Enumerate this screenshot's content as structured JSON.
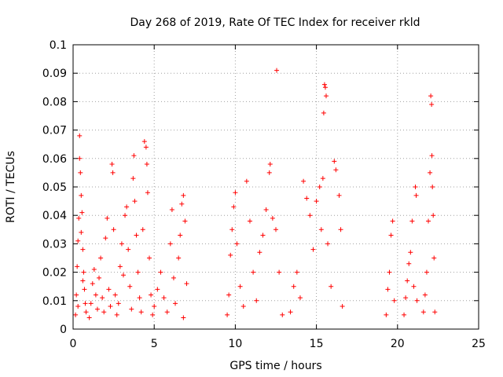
{
  "chart_data": {
    "type": "scatter",
    "title": "Day 268 of 2019, Rate Of TEC Index for receiver rkld",
    "xlabel": "GPS time / hours",
    "ylabel": "ROTI / TECUs",
    "xlim": [
      0,
      25
    ],
    "ylim": [
      0,
      0.1
    ],
    "x_ticks": [
      "0",
      "5",
      "10",
      "15",
      "20",
      "25"
    ],
    "y_ticks": [
      "0",
      "0.01",
      "0.02",
      "0.03",
      "0.04",
      "0.05",
      "0.06",
      "0.07",
      "0.08",
      "0.09",
      "0.1"
    ],
    "grid": true,
    "marker": "+",
    "color": "#ff0000",
    "series": [
      {
        "points": [
          [
            0.15,
            0.005
          ],
          [
            0.2,
            0.012
          ],
          [
            0.25,
            0.022
          ],
          [
            0.3,
            0.031
          ],
          [
            0.35,
            0.039
          ],
          [
            0.4,
            0.068
          ],
          [
            0.4,
            0.06
          ],
          [
            0.45,
            0.055
          ],
          [
            0.5,
            0.047
          ],
          [
            0.55,
            0.041
          ],
          [
            0.6,
            0.028
          ],
          [
            0.65,
            0.02
          ],
          [
            0.7,
            0.014
          ],
          [
            0.75,
            0.009
          ],
          [
            0.8,
            0.006
          ],
          [
            0.3,
            0.008
          ],
          [
            0.5,
            0.034
          ],
          [
            0.6,
            0.017
          ],
          [
            1.0,
            0.004
          ],
          [
            1.1,
            0.009
          ],
          [
            1.2,
            0.016
          ],
          [
            1.3,
            0.021
          ],
          [
            1.4,
            0.012
          ],
          [
            1.5,
            0.007
          ],
          [
            1.6,
            0.018
          ],
          [
            1.7,
            0.025
          ],
          [
            1.8,
            0.011
          ],
          [
            1.9,
            0.006
          ],
          [
            2.0,
            0.032
          ],
          [
            2.1,
            0.039
          ],
          [
            2.2,
            0.014
          ],
          [
            2.3,
            0.008
          ],
          [
            2.4,
            0.058
          ],
          [
            2.45,
            0.055
          ],
          [
            2.5,
            0.035
          ],
          [
            2.6,
            0.012
          ],
          [
            2.7,
            0.005
          ],
          [
            2.8,
            0.009
          ],
          [
            2.9,
            0.022
          ],
          [
            3.0,
            0.03
          ],
          [
            3.1,
            0.019
          ],
          [
            3.2,
            0.04
          ],
          [
            3.3,
            0.043
          ],
          [
            3.4,
            0.028
          ],
          [
            3.5,
            0.015
          ],
          [
            3.6,
            0.007
          ],
          [
            3.7,
            0.053
          ],
          [
            3.75,
            0.061
          ],
          [
            3.8,
            0.045
          ],
          [
            3.9,
            0.033
          ],
          [
            4.0,
            0.02
          ],
          [
            4.1,
            0.011
          ],
          [
            4.2,
            0.006
          ],
          [
            4.3,
            0.035
          ],
          [
            4.4,
            0.066
          ],
          [
            4.5,
            0.064
          ],
          [
            4.55,
            0.058
          ],
          [
            4.6,
            0.048
          ],
          [
            4.7,
            0.025
          ],
          [
            4.8,
            0.012
          ],
          [
            4.9,
            0.005
          ],
          [
            5.0,
            0.008
          ],
          [
            5.2,
            0.014
          ],
          [
            5.4,
            0.02
          ],
          [
            5.6,
            0.011
          ],
          [
            5.8,
            0.006
          ],
          [
            6.0,
            0.03
          ],
          [
            6.1,
            0.042
          ],
          [
            6.2,
            0.018
          ],
          [
            6.3,
            0.009
          ],
          [
            6.5,
            0.025
          ],
          [
            6.6,
            0.033
          ],
          [
            6.7,
            0.044
          ],
          [
            6.8,
            0.047
          ],
          [
            6.9,
            0.038
          ],
          [
            7.0,
            0.016
          ],
          [
            6.8,
            0.004
          ],
          [
            9.5,
            0.005
          ],
          [
            9.6,
            0.012
          ],
          [
            9.7,
            0.026
          ],
          [
            9.8,
            0.035
          ],
          [
            9.9,
            0.043
          ],
          [
            10.0,
            0.048
          ],
          [
            10.1,
            0.03
          ],
          [
            10.3,
            0.015
          ],
          [
            10.5,
            0.008
          ],
          [
            10.7,
            0.052
          ],
          [
            10.9,
            0.038
          ],
          [
            11.1,
            0.02
          ],
          [
            11.3,
            0.01
          ],
          [
            11.5,
            0.027
          ],
          [
            11.7,
            0.033
          ],
          [
            11.9,
            0.042
          ],
          [
            12.1,
            0.055
          ],
          [
            12.15,
            0.058
          ],
          [
            12.3,
            0.039
          ],
          [
            12.5,
            0.035
          ],
          [
            12.55,
            0.091
          ],
          [
            12.7,
            0.02
          ],
          [
            12.9,
            0.005
          ],
          [
            13.4,
            0.006
          ],
          [
            13.6,
            0.015
          ],
          [
            13.8,
            0.02
          ],
          [
            14.0,
            0.011
          ],
          [
            14.2,
            0.052
          ],
          [
            14.4,
            0.046
          ],
          [
            14.6,
            0.04
          ],
          [
            14.8,
            0.028
          ],
          [
            15.0,
            0.045
          ],
          [
            15.2,
            0.05
          ],
          [
            15.3,
            0.035
          ],
          [
            15.4,
            0.053
          ],
          [
            15.45,
            0.076
          ],
          [
            15.5,
            0.086
          ],
          [
            15.55,
            0.085
          ],
          [
            15.6,
            0.082
          ],
          [
            15.7,
            0.03
          ],
          [
            15.9,
            0.015
          ],
          [
            16.1,
            0.059
          ],
          [
            16.2,
            0.056
          ],
          [
            16.4,
            0.047
          ],
          [
            16.5,
            0.035
          ],
          [
            16.6,
            0.008
          ],
          [
            19.3,
            0.005
          ],
          [
            19.4,
            0.014
          ],
          [
            19.5,
            0.02
          ],
          [
            19.6,
            0.033
          ],
          [
            19.7,
            0.038
          ],
          [
            19.8,
            0.01
          ],
          [
            20.4,
            0.005
          ],
          [
            20.5,
            0.011
          ],
          [
            20.6,
            0.017
          ],
          [
            20.7,
            0.023
          ],
          [
            20.8,
            0.027
          ],
          [
            20.9,
            0.038
          ],
          [
            21.0,
            0.015
          ],
          [
            21.1,
            0.05
          ],
          [
            21.15,
            0.047
          ],
          [
            21.2,
            0.01
          ],
          [
            21.6,
            0.006
          ],
          [
            21.7,
            0.012
          ],
          [
            21.8,
            0.02
          ],
          [
            21.9,
            0.038
          ],
          [
            22.0,
            0.055
          ],
          [
            22.05,
            0.082
          ],
          [
            22.1,
            0.079
          ],
          [
            22.12,
            0.061
          ],
          [
            22.15,
            0.05
          ],
          [
            22.2,
            0.04
          ],
          [
            22.25,
            0.025
          ],
          [
            22.3,
            0.006
          ]
        ]
      }
    ]
  }
}
